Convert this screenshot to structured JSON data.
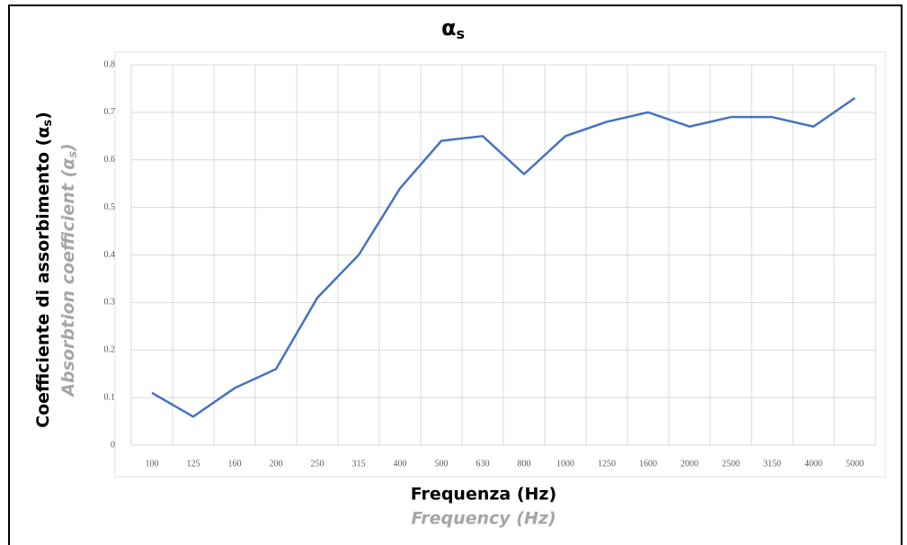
{
  "chart_data": {
    "type": "line",
    "title": [
      "α",
      "s"
    ],
    "ylabel": [
      "Coefficiente di assorbimento (α",
      "s",
      ")"
    ],
    "ylabel_secondary": [
      "Absorbtion coefficient (α",
      "s",
      ")"
    ],
    "xlabel": "Frequenza (Hz)",
    "xlabel_secondary": "Frequency (Hz)",
    "categories": [
      "100",
      "125",
      "160",
      "200",
      "250",
      "315",
      "400",
      "500",
      "630",
      "800",
      "1000",
      "1250",
      "1600",
      "2000",
      "2500",
      "3150",
      "4000",
      "5000"
    ],
    "values": [
      0.11,
      0.06,
      0.12,
      0.16,
      0.31,
      0.4,
      0.54,
      0.64,
      0.65,
      0.57,
      0.65,
      0.68,
      0.7,
      0.67,
      0.69,
      0.69,
      0.67,
      0.73
    ],
    "color": "#4472c4",
    "ylim": [
      0,
      0.8
    ],
    "yticks": [
      0,
      0.1,
      0.2,
      0.3,
      0.4,
      0.5,
      0.6,
      0.7,
      0.8
    ],
    "grid": true
  }
}
